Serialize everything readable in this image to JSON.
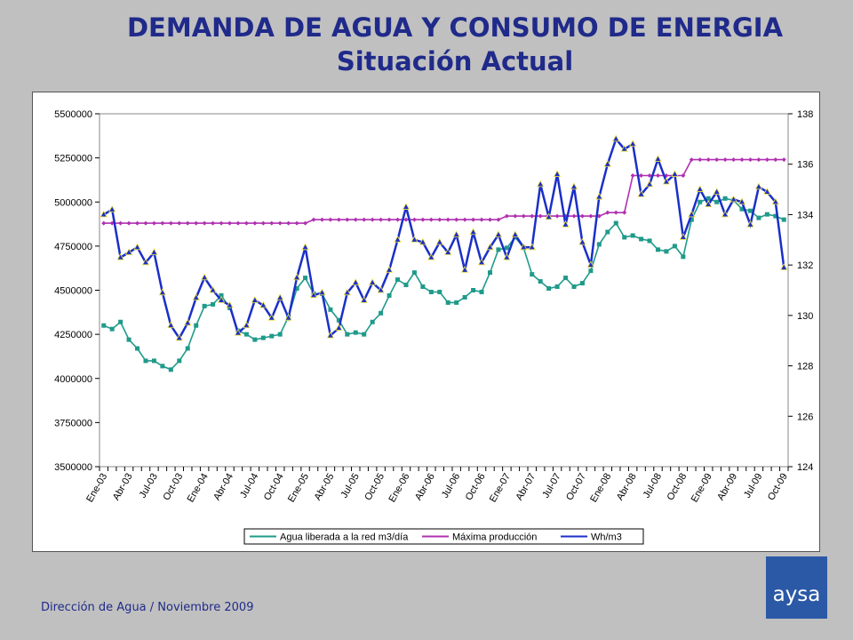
{
  "header": {
    "title": "DEMANDA DE AGUA Y CONSUMO DE ENERGIA",
    "subtitle": "Situación Actual"
  },
  "footer": {
    "text": "Dirección de Agua / Noviembre 2009"
  },
  "logo": {
    "text": "aysa"
  },
  "colors": {
    "background": "#c0c0c0",
    "title": "#1f2a8a",
    "logo_bg": "#2b59a6"
  },
  "chart_data": {
    "type": "line",
    "title": "",
    "xlabel": "",
    "ylabel": "",
    "ylim": [
      3500000,
      5500000
    ],
    "y2lim": [
      124,
      138
    ],
    "yticks": [
      3500000,
      3750000,
      4000000,
      4250000,
      4500000,
      4750000,
      5000000,
      5250000,
      5500000
    ],
    "y2ticks": [
      124,
      126,
      128,
      130,
      132,
      134,
      136,
      138
    ],
    "grid": false,
    "legend_position": "bottom",
    "x_tick_labels": [
      "Ene-03",
      "Abr-03",
      "Jul-03",
      "Oct-03",
      "Ene-04",
      "Abr-04",
      "Jul-04",
      "Oct-04",
      "Ene-05",
      "Abr-05",
      "Jul-05",
      "Oct-05",
      "Ene-06",
      "Abr-06",
      "Jul-06",
      "Oct-06",
      "Ene-07",
      "Abr-07",
      "Jul-07",
      "Oct-07",
      "Ene-08",
      "Abr-08",
      "Jul-08",
      "Oct-08",
      "Ene-09",
      "Abr-09",
      "Jul-09",
      "Oct-09"
    ],
    "series": [
      {
        "name": "Agua liberada a la red m3/día",
        "axis": "left",
        "color": "#1f9a8a",
        "marker": "square",
        "values": [
          4300000,
          4280000,
          4320000,
          4220000,
          4170000,
          4100000,
          4100000,
          4070000,
          4050000,
          4100000,
          4170000,
          4300000,
          4410000,
          4420000,
          4470000,
          4400000,
          4270000,
          4250000,
          4220000,
          4230000,
          4240000,
          4250000,
          4350000,
          4510000,
          4570000,
          4480000,
          4480000,
          4390000,
          4330000,
          4250000,
          4260000,
          4250000,
          4320000,
          4370000,
          4470000,
          4560000,
          4530000,
          4600000,
          4520000,
          4490000,
          4490000,
          4430000,
          4430000,
          4460000,
          4500000,
          4490000,
          4600000,
          4730000,
          4740000,
          4800000,
          4740000,
          4590000,
          4550000,
          4510000,
          4520000,
          4570000,
          4520000,
          4540000,
          4610000,
          4760000,
          4830000,
          4880000,
          4800000,
          4810000,
          4790000,
          4780000,
          4730000,
          4720000,
          4750000,
          4690000,
          4900000,
          5000000,
          5020000,
          5000000,
          5020000,
          5010000,
          4960000,
          4950000,
          4910000,
          4930000,
          4920000,
          4900000
        ]
      },
      {
        "name": "Máxima producción",
        "axis": "left",
        "color": "#b030b0",
        "marker": "diamond",
        "values": [
          4880000,
          4880000,
          4880000,
          4880000,
          4880000,
          4880000,
          4880000,
          4880000,
          4880000,
          4880000,
          4880000,
          4880000,
          4880000,
          4880000,
          4880000,
          4880000,
          4880000,
          4880000,
          4880000,
          4880000,
          4880000,
          4880000,
          4880000,
          4880000,
          4880000,
          4900000,
          4900000,
          4900000,
          4900000,
          4900000,
          4900000,
          4900000,
          4900000,
          4900000,
          4900000,
          4900000,
          4900000,
          4900000,
          4900000,
          4900000,
          4900000,
          4900000,
          4900000,
          4900000,
          4900000,
          4900000,
          4900000,
          4900000,
          4920000,
          4920000,
          4920000,
          4920000,
          4920000,
          4920000,
          4920000,
          4920000,
          4920000,
          4920000,
          4920000,
          4920000,
          4940000,
          4940000,
          4940000,
          5150000,
          5150000,
          5150000,
          5150000,
          5150000,
          5150000,
          5150000,
          5240000,
          5240000,
          5240000,
          5240000,
          5240000,
          5240000,
          5240000,
          5240000,
          5240000,
          5240000,
          5240000,
          5240000
        ]
      },
      {
        "name": "Wh/m3",
        "axis": "right",
        "color": "#1a2fc8",
        "marker": "triangle",
        "values": [
          134.0,
          134.2,
          132.3,
          132.5,
          132.7,
          132.1,
          132.5,
          130.9,
          129.6,
          129.1,
          129.7,
          130.7,
          131.5,
          131.0,
          130.6,
          130.4,
          129.3,
          129.6,
          130.6,
          130.4,
          129.9,
          130.7,
          129.9,
          131.5,
          132.7,
          130.8,
          130.9,
          129.2,
          129.5,
          130.9,
          131.3,
          130.6,
          131.3,
          131.0,
          131.8,
          133.0,
          134.3,
          133.0,
          132.9,
          132.3,
          132.9,
          132.5,
          133.2,
          131.8,
          133.3,
          132.1,
          132.7,
          133.2,
          132.3,
          133.2,
          132.7,
          132.7,
          135.2,
          133.9,
          135.6,
          133.6,
          135.1,
          132.9,
          132.0,
          134.7,
          136.0,
          137.0,
          136.6,
          136.8,
          134.8,
          135.2,
          136.2,
          135.3,
          135.6,
          133.1,
          134.0,
          135.0,
          134.4,
          134.9,
          134.0,
          134.6,
          134.5,
          133.6,
          135.1,
          134.9,
          134.5,
          131.9
        ]
      }
    ]
  }
}
